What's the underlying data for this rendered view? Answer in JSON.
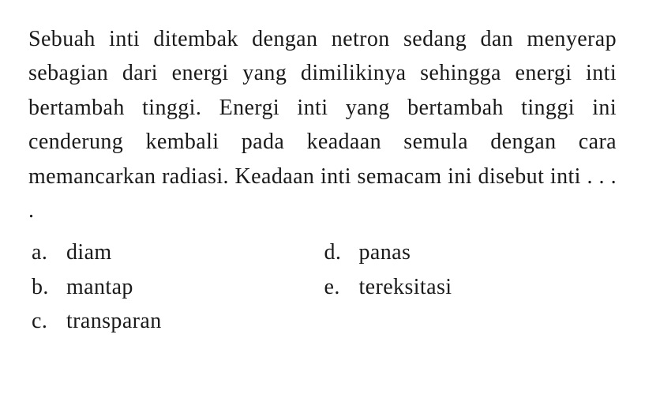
{
  "question": {
    "text": "Sebuah inti ditembak dengan netron sedang dan menyerap sebagian dari energi yang dimilikinya sehingga energi inti bertambah tinggi. Energi inti yang bertambah tinggi ini cenderung kembali pada keadaan semula dengan cara memancarkan radiasi. Keadaan inti semacam ini disebut inti . . . ."
  },
  "options": {
    "a": {
      "letter": "a.",
      "text": "diam"
    },
    "b": {
      "letter": "b.",
      "text": "mantap"
    },
    "c": {
      "letter": "c.",
      "text": "transparan"
    },
    "d": {
      "letter": "d.",
      "text": "panas"
    },
    "e": {
      "letter": "e.",
      "text": "tereksitasi"
    }
  },
  "style": {
    "font_family": "Georgia, Times New Roman, serif",
    "font_size_pt": 21,
    "text_color": "#1a1a1a",
    "background_color": "#ffffff",
    "line_height": 1.55,
    "text_align": "justify"
  }
}
